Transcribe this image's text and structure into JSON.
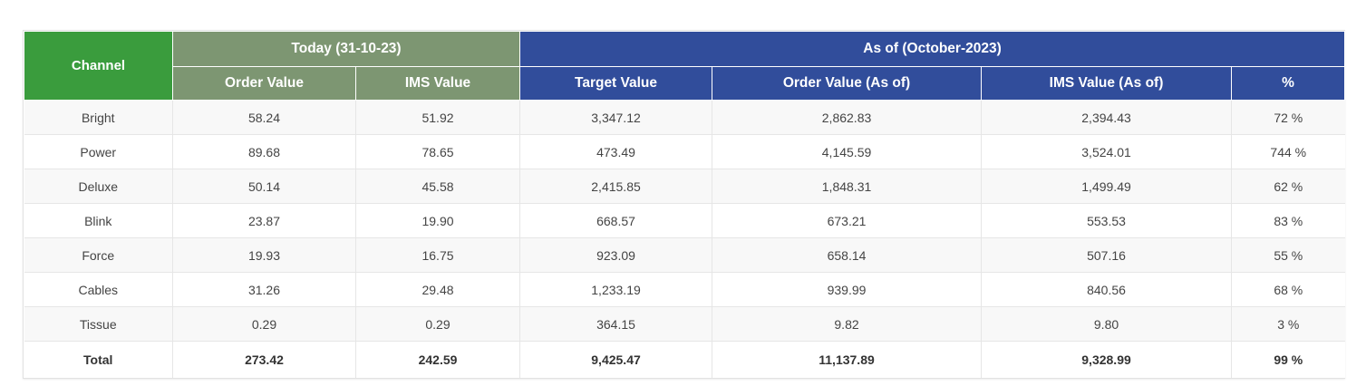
{
  "colors": {
    "channel_header": "#3a9c3d",
    "today_header": "#7d9672",
    "asof_header": "#314d9b",
    "stripe": "#f8f8f8"
  },
  "header": {
    "channel": "Channel",
    "today_group": "Today (31-10-23)",
    "asof_group": "As of (October-2023)",
    "columns": [
      "Order Value",
      "IMS Value",
      "Target Value",
      "Order Value (As of)",
      "IMS Value (As of)",
      "%"
    ]
  },
  "rows": [
    [
      "Bright",
      "58.24",
      "51.92",
      "3,347.12",
      "2,862.83",
      "2,394.43",
      "72 %"
    ],
    [
      "Power",
      "89.68",
      "78.65",
      "473.49",
      "4,145.59",
      "3,524.01",
      "744 %"
    ],
    [
      "Deluxe",
      "50.14",
      "45.58",
      "2,415.85",
      "1,848.31",
      "1,499.49",
      "62 %"
    ],
    [
      "Blink",
      "23.87",
      "19.90",
      "668.57",
      "673.21",
      "553.53",
      "83 %"
    ],
    [
      "Force",
      "19.93",
      "16.75",
      "923.09",
      "658.14",
      "507.16",
      "55 %"
    ],
    [
      "Cables",
      "31.26",
      "29.48",
      "1,233.19",
      "939.99",
      "840.56",
      "68 %"
    ],
    [
      "Tissue",
      "0.29",
      "0.29",
      "364.15",
      "9.82",
      "9.80",
      "3 %"
    ]
  ],
  "total": [
    "Total",
    "273.42",
    "242.59",
    "9,425.47",
    "11,137.89",
    "9,328.99",
    "99 %"
  ]
}
